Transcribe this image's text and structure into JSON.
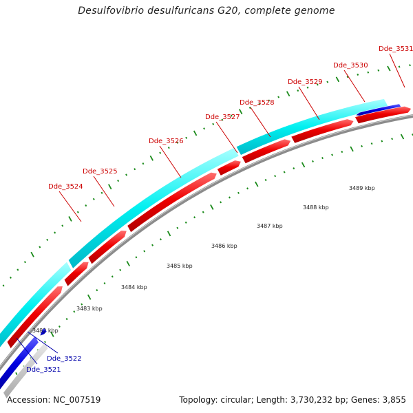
{
  "title": "Desulfovibrio desulfuricans G20, complete genome",
  "footer": {
    "accession": "Accession: NC_007519",
    "summary": "Topology: circular; Length: 3,730,232 bp; Genes: 3,855"
  },
  "colors": {
    "forward_gene": "#ff0000",
    "reverse_gene": "#0000e6",
    "cds_feature": "#00ffff",
    "backbone": "#8c8c8c",
    "ticks": "#1a8a1a",
    "label_forward": "#cc0000",
    "label_reverse": "#0000aa"
  },
  "scale_labels": [
    "3482 kbp",
    "3483 kbp",
    "3484 kbp",
    "3485 kbp",
    "3486 kbp",
    "3487 kbp",
    "3488 kbp",
    "3489 kbp"
  ],
  "gene_labels": [
    {
      "text": "Dde_3521",
      "strand": "reverse"
    },
    {
      "text": "Dde_3522",
      "strand": "reverse"
    },
    {
      "text": "Dde_3524",
      "strand": "forward"
    },
    {
      "text": "Dde_3525",
      "strand": "forward"
    },
    {
      "text": "Dde_3526",
      "strand": "forward"
    },
    {
      "text": "Dde_3527",
      "strand": "forward"
    },
    {
      "text": "Dde_3528",
      "strand": "forward"
    },
    {
      "text": "Dde_3529",
      "strand": "forward"
    },
    {
      "text": "Dde_3530",
      "strand": "forward"
    },
    {
      "text": "Dde_3531",
      "strand": "forward"
    }
  ]
}
